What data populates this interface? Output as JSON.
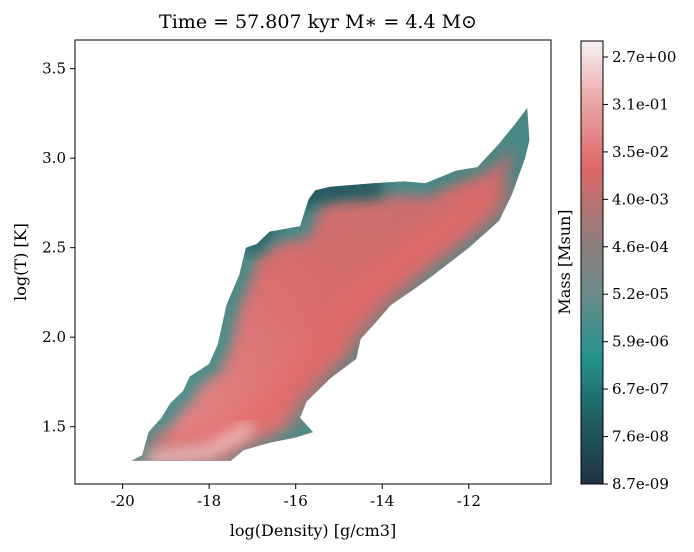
{
  "chart_data": {
    "type": "heatmap",
    "title": "Time = 57.807 kyr    M$_*$ = 4.4 M$_\\odot$",
    "title_display": "Time = 57.807 kyr    M∗ = 4.4 M⊙",
    "xlabel": "log(Density) [g/cm3]",
    "ylabel": "log(T) [K]",
    "xlim": [
      -21.1,
      -10.1
    ],
    "ylim": [
      1.18,
      3.66
    ],
    "x_ticks": [
      -20,
      -18,
      -16,
      -14,
      -12
    ],
    "x_tick_labels": [
      "-20",
      "-18",
      "-16",
      "-14",
      "-12"
    ],
    "y_ticks": [
      1.5,
      2.0,
      2.5,
      3.0,
      3.5
    ],
    "y_tick_labels": [
      "1.5",
      "2.0",
      "2.5",
      "3.0",
      "3.5"
    ],
    "grid": false,
    "colorbar": {
      "label": "Mass [Msun]",
      "scale": "log",
      "min": 8.7e-09,
      "max": 2.7,
      "tick_labels": [
        "8.7e-09",
        "7.6e-08",
        "6.7e-07",
        "5.9e-06",
        "5.2e-05",
        "4.6e-04",
        "4.0e-03",
        "3.5e-02",
        "3.1e-01",
        "2.7e+00"
      ],
      "colors": [
        "#1f3347",
        "#1f5c60",
        "#23928e",
        "#6e8b8b",
        "#9a7a7a",
        "#de6767",
        "#e9a3a3",
        "#faf2f2"
      ]
    },
    "region_outline": [
      [
        -19.8,
        1.31
      ],
      [
        -17.5,
        1.31
      ],
      [
        -17.2,
        1.37
      ],
      [
        -16.6,
        1.41
      ],
      [
        -16.0,
        1.44
      ],
      [
        -15.6,
        1.47
      ],
      [
        -15.9,
        1.55
      ],
      [
        -15.75,
        1.64
      ],
      [
        -15.2,
        1.77
      ],
      [
        -14.6,
        1.88
      ],
      [
        -14.5,
        1.99
      ],
      [
        -14.2,
        2.07
      ],
      [
        -13.8,
        2.18
      ],
      [
        -13.2,
        2.28
      ],
      [
        -12.8,
        2.35
      ],
      [
        -12.0,
        2.5
      ],
      [
        -11.3,
        2.65
      ],
      [
        -11.0,
        2.8
      ],
      [
        -10.7,
        3.0
      ],
      [
        -10.6,
        3.1
      ],
      [
        -10.65,
        3.28
      ],
      [
        -10.9,
        3.2
      ],
      [
        -11.3,
        3.08
      ],
      [
        -11.8,
        2.95
      ],
      [
        -12.3,
        2.93
      ],
      [
        -13.0,
        2.86
      ],
      [
        -13.5,
        2.87
      ],
      [
        -14.2,
        2.86
      ],
      [
        -15.2,
        2.84
      ],
      [
        -15.55,
        2.82
      ],
      [
        -15.7,
        2.77
      ],
      [
        -15.9,
        2.62
      ],
      [
        -16.6,
        2.59
      ],
      [
        -16.9,
        2.52
      ],
      [
        -17.15,
        2.5
      ],
      [
        -17.3,
        2.35
      ],
      [
        -17.6,
        2.18
      ],
      [
        -17.8,
        1.96
      ],
      [
        -18.0,
        1.85
      ],
      [
        -18.45,
        1.78
      ],
      [
        -18.6,
        1.7
      ],
      [
        -18.9,
        1.63
      ],
      [
        -19.1,
        1.55
      ],
      [
        -19.4,
        1.47
      ],
      [
        -19.55,
        1.34
      ]
    ],
    "dense_ridge": [
      [
        -19.4,
        1.32
      ],
      [
        -18.0,
        1.36
      ],
      [
        -17.0,
        1.5
      ],
      [
        -16.0,
        1.7
      ],
      [
        -15.0,
        2.0
      ],
      [
        -14.0,
        2.28
      ],
      [
        -13.0,
        2.5
      ],
      [
        -12.0,
        2.68
      ],
      [
        -11.2,
        2.85
      ]
    ],
    "low_mass_edge": [
      [
        -17.15,
        2.5
      ],
      [
        -16.5,
        2.7
      ],
      [
        -15.7,
        2.8
      ],
      [
        -15.0,
        2.83
      ],
      [
        -14.0,
        2.84
      ]
    ]
  }
}
